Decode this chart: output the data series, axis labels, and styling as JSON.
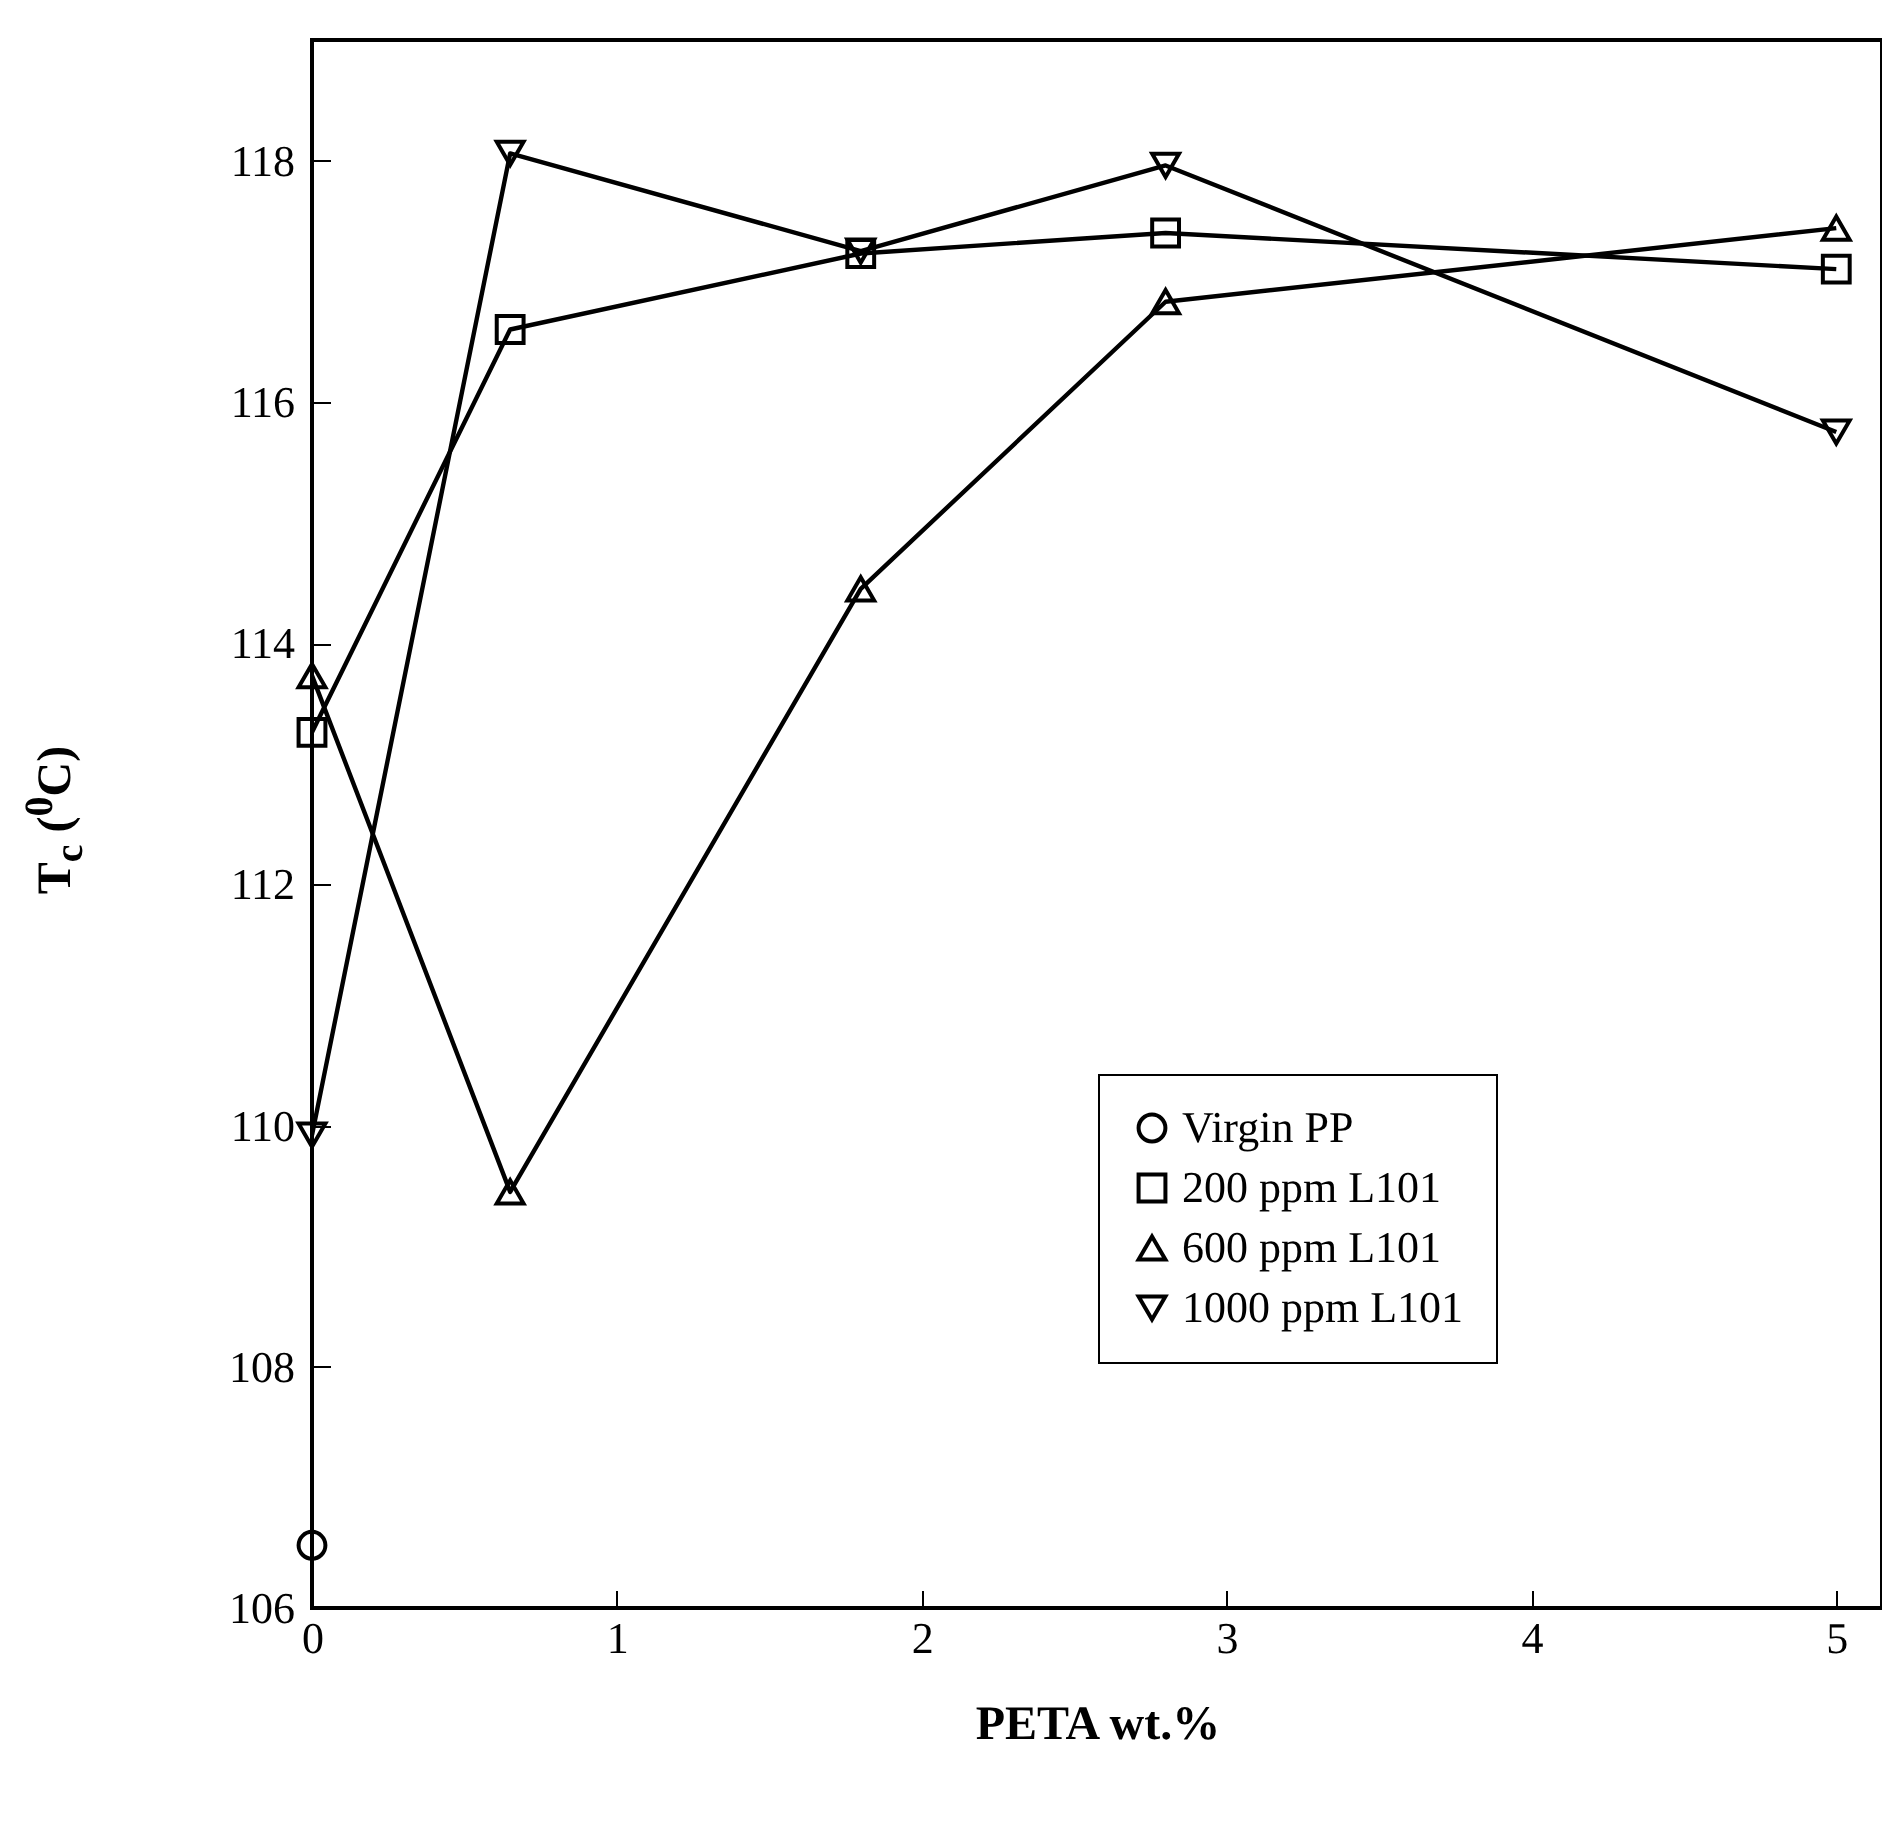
{
  "chart_data": {
    "type": "line",
    "xlabel": "PETA wt.%",
    "ylabel": "T$_{c}$ ($^{0}$C)",
    "x": [
      0,
      0.65,
      1.8,
      2.8,
      5
    ],
    "series": [
      {
        "name": "Virgin PP",
        "color": "#000000",
        "marker": "circle",
        "x": [
          0
        ],
        "values": [
          106.52
        ]
      },
      {
        "name": "200  ppm L101",
        "color": "#000000",
        "marker": "square",
        "values": [
          113.26,
          116.6,
          117.23,
          117.4,
          117.1
        ]
      },
      {
        "name": "600  ppm L101",
        "color": "#000000",
        "marker": "triangle",
        "values": [
          113.73,
          109.45,
          114.45,
          116.83,
          117.44
        ]
      },
      {
        "name": "1000 ppm L101",
        "color": "#000000",
        "marker": "triangle-down",
        "values": [
          109.92,
          118.06,
          117.25,
          117.96,
          115.75
        ]
      }
    ],
    "xlim": [
      0,
      5.15
    ],
    "ylim": [
      106,
      119
    ],
    "xticks": [
      0,
      1,
      2,
      3,
      4,
      5
    ],
    "yticks": [
      106,
      108,
      110,
      112,
      114,
      116,
      118
    ],
    "legend": "bottom right",
    "grid": false,
    "line_style": "solid"
  }
}
